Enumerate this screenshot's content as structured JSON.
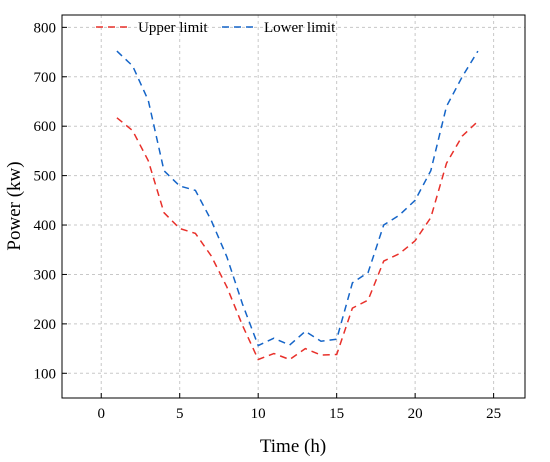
{
  "chart_data": {
    "type": "line",
    "title": "",
    "xlabel": "Time (h)",
    "ylabel": "Power (kw)",
    "xlim": [
      -2.5,
      27
    ],
    "ylim": [
      50,
      825
    ],
    "x_ticks": [
      0,
      5,
      10,
      15,
      20,
      25
    ],
    "y_ticks": [
      100,
      200,
      300,
      400,
      500,
      600,
      700,
      800
    ],
    "grid": true,
    "legend_position": "top-left",
    "x": [
      1,
      2,
      3,
      4,
      5,
      6,
      7,
      8,
      9,
      10,
      11,
      12,
      13,
      14,
      15,
      16,
      17,
      18,
      19,
      20,
      21,
      22,
      23,
      24
    ],
    "series": [
      {
        "name": "Upper limit",
        "color": "#e8302a",
        "line_style": "dashed",
        "values": [
          617,
          591,
          530,
          425,
          393,
          383,
          338,
          275,
          197,
          128,
          140,
          128,
          150,
          137,
          138,
          232,
          248,
          327,
          342,
          368,
          415,
          525,
          580,
          610
        ]
      },
      {
        "name": "Lower limit",
        "color": "#1565c8",
        "line_style": "dashed",
        "values": [
          752,
          722,
          652,
          510,
          479,
          470,
          410,
          336,
          240,
          156,
          171,
          157,
          185,
          165,
          169,
          283,
          304,
          400,
          420,
          450,
          510,
          640,
          700,
          752
        ]
      }
    ]
  }
}
